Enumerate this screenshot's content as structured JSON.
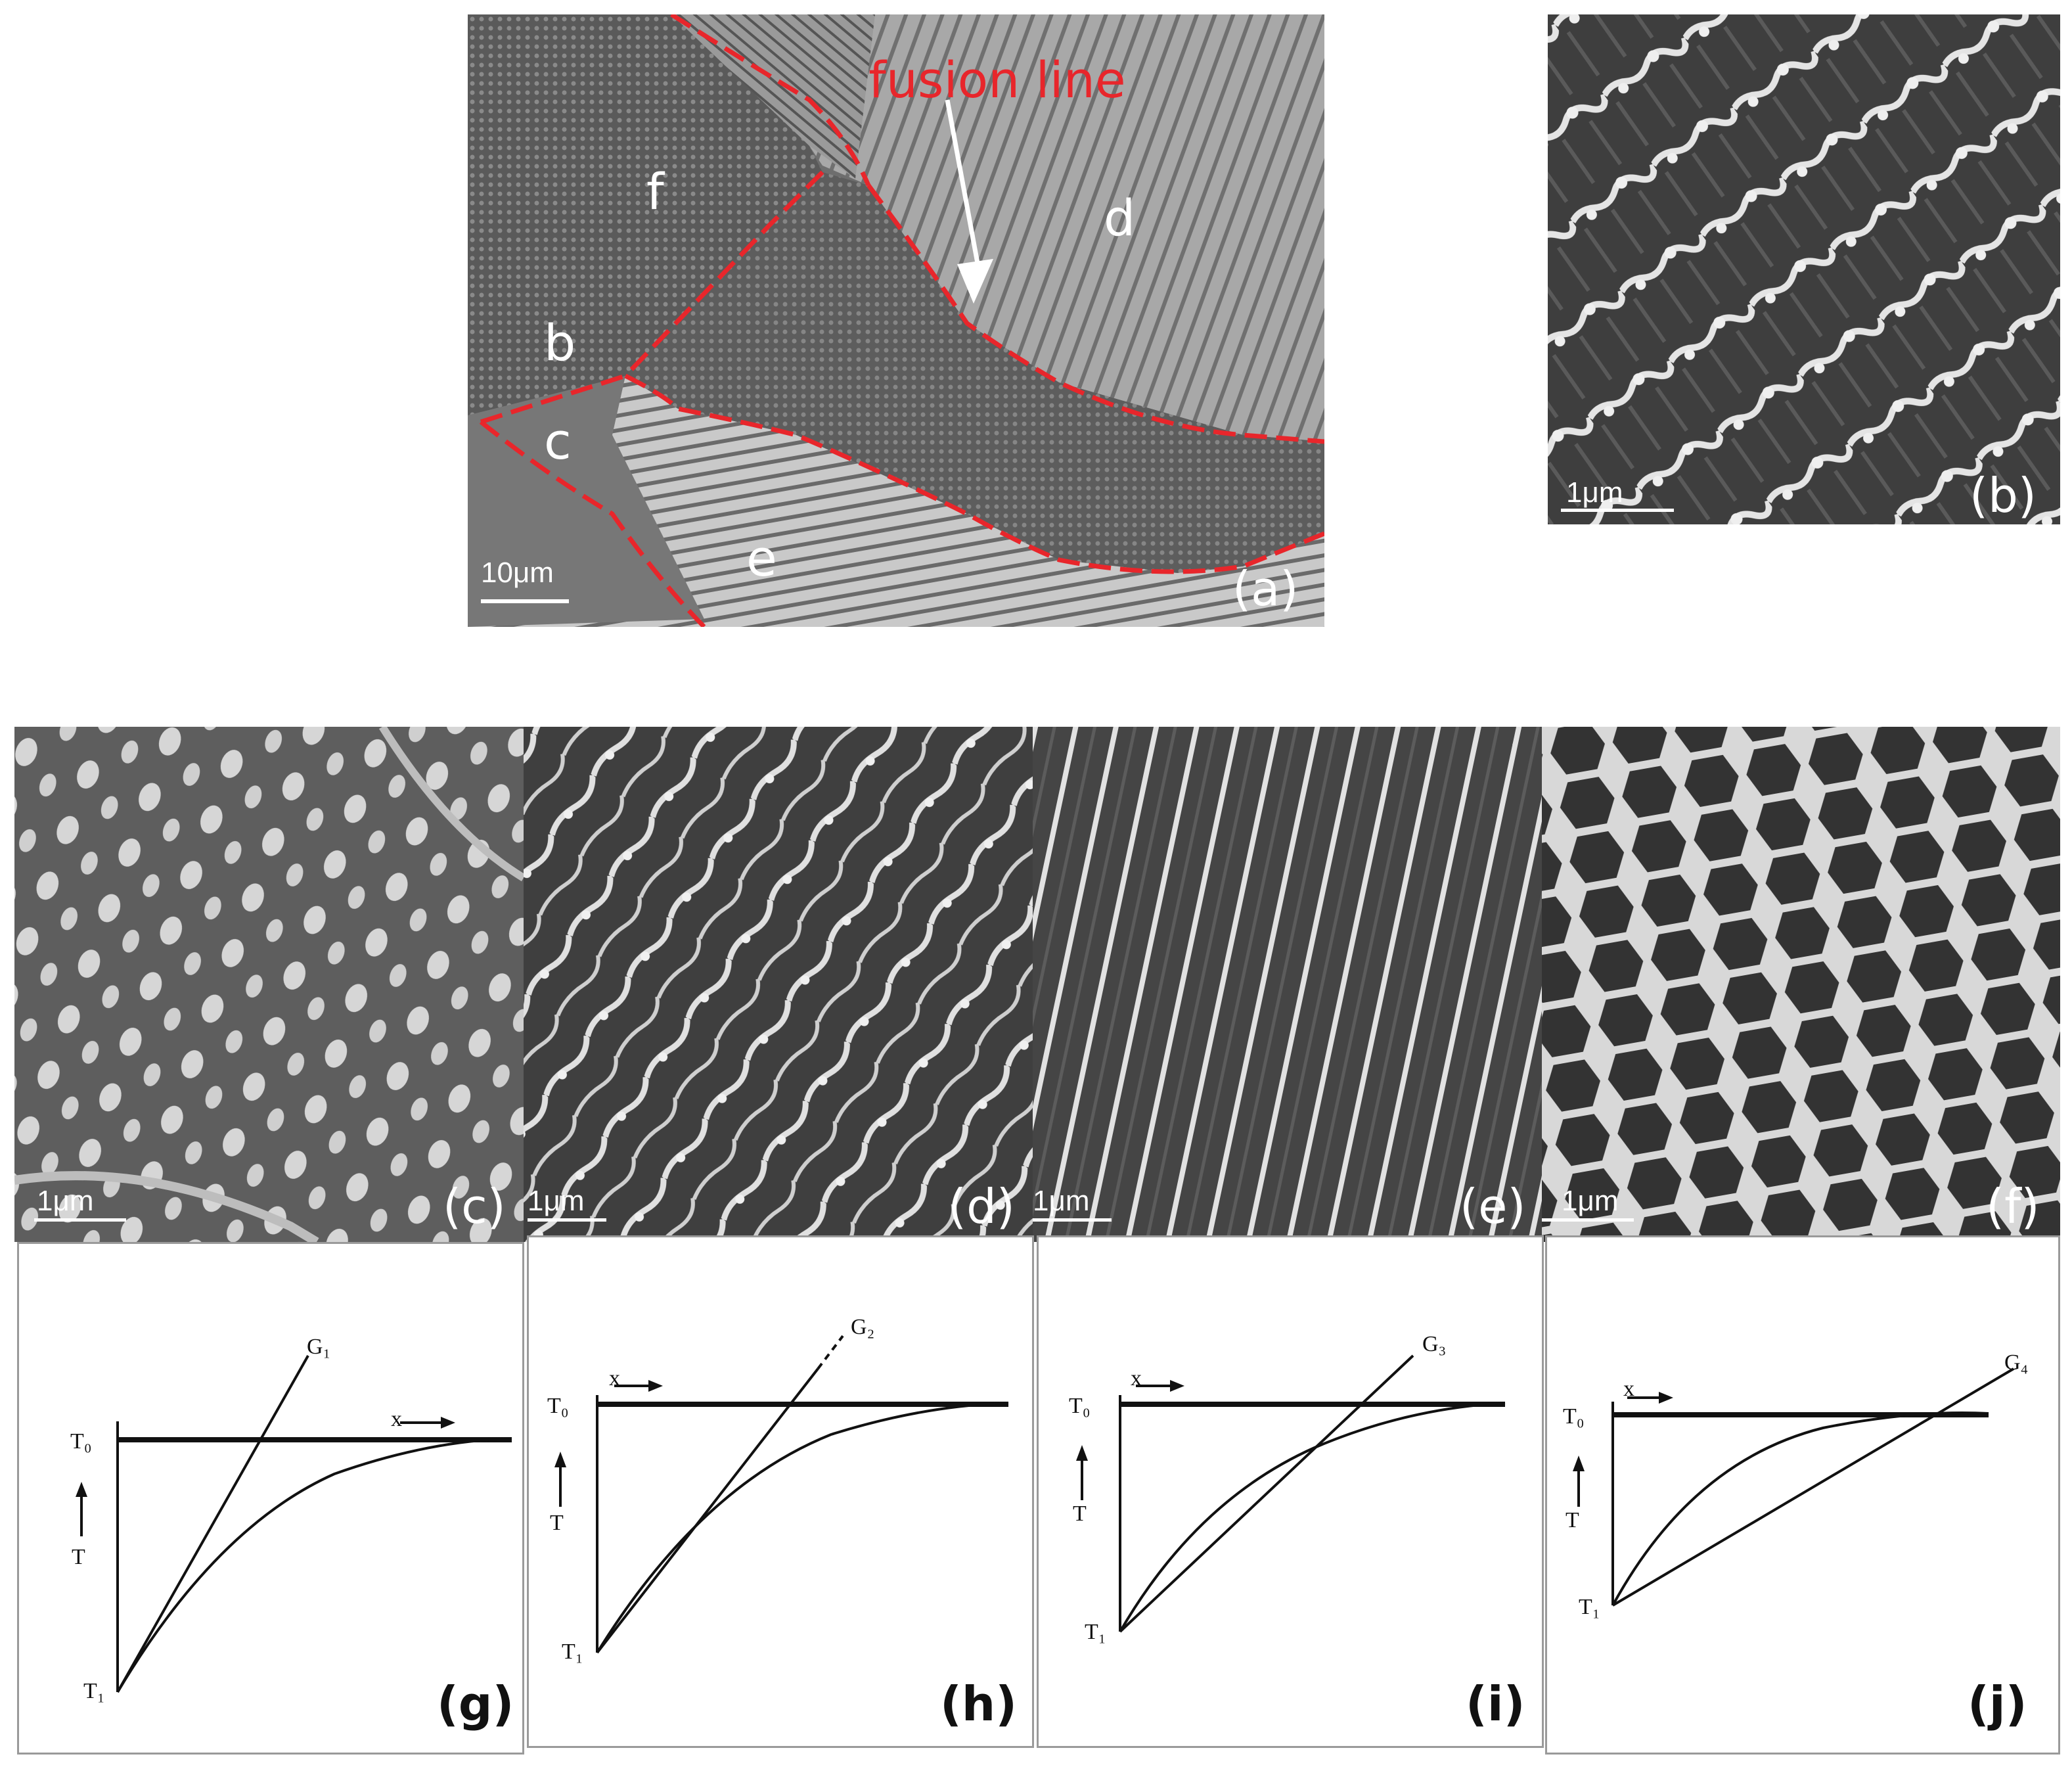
{
  "panel_a": {
    "label": "(a)",
    "scale": "10μm",
    "fusion_label": "fusion line",
    "regions": [
      "f",
      "b",
      "c",
      "d",
      "e"
    ]
  },
  "panel_b": {
    "label": "(b)",
    "scale": "1μm"
  },
  "panel_c": {
    "label": "(c)",
    "scale": "1μm"
  },
  "panel_d": {
    "label": "(d)",
    "scale": "1μm"
  },
  "panel_e": {
    "label": "(e)",
    "scale": "1μm"
  },
  "panel_f": {
    "label": "(f)",
    "scale": "1μm"
  },
  "diagrams": [
    {
      "label": "(g)",
      "grad": "G₁",
      "t0": "T₀",
      "t1": "T₁",
      "t": "T",
      "x": "x"
    },
    {
      "label": "(h)",
      "grad": "G₂",
      "t0": "T₀",
      "t1": "T₁",
      "t": "T",
      "x": "x"
    },
    {
      "label": "(i)",
      "grad": "G₃",
      "t0": "T₀",
      "t1": "T₁",
      "t": "T",
      "x": "x"
    },
    {
      "label": "(j)",
      "grad": "G₄",
      "t0": "T₀",
      "t1": "T₁",
      "t": "T",
      "x": "x"
    }
  ],
  "colors": {
    "fusion_line": "#e8262b",
    "micrograph_bg": "#4a4a4a",
    "precipitate": "#e6e6e6"
  }
}
